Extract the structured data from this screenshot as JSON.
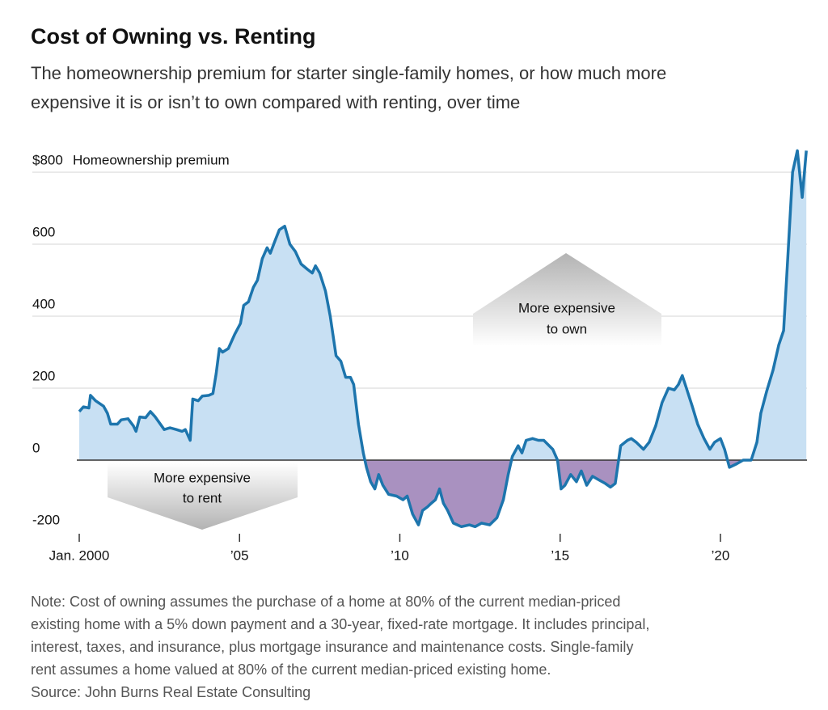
{
  "chart_data": {
    "type": "line",
    "title": "Cost of Owning vs. Renting",
    "subtitle": [
      "The homeownership premium for starter single-family homes, or how much more",
      "expensive it is or isn’t to own compared with renting, over time"
    ],
    "y_label": "Homeownership premium",
    "x": [
      2000.0,
      2000.13,
      2000.3,
      2000.35,
      2000.51,
      2000.76,
      2000.88,
      2000.98,
      2001.19,
      2001.31,
      2001.52,
      2001.69,
      2001.77,
      2001.89,
      2002.07,
      2002.22,
      2002.37,
      2002.65,
      2002.83,
      2003.03,
      2003.21,
      2003.31,
      2003.46,
      2003.54,
      2003.71,
      2003.84,
      2004.04,
      2004.17,
      2004.27,
      2004.37,
      2004.47,
      2004.65,
      2004.85,
      2005.03,
      2005.13,
      2005.28,
      2005.43,
      2005.56,
      2005.71,
      2005.86,
      2005.96,
      2006.11,
      2006.24,
      2006.41,
      2006.57,
      2006.74,
      2006.92,
      2007.12,
      2007.27,
      2007.37,
      2007.5,
      2007.68,
      2007.83,
      2008.01,
      2008.16,
      2008.31,
      2008.46,
      2008.56,
      2008.71,
      2008.86,
      2008.96,
      2009.09,
      2009.22,
      2009.34,
      2009.47,
      2009.65,
      2009.9,
      2010.1,
      2010.23,
      2010.4,
      2010.58,
      2010.71,
      2010.86,
      2010.98,
      2011.11,
      2011.24,
      2011.36,
      2011.49,
      2011.67,
      2011.92,
      2012.17,
      2012.35,
      2012.55,
      2012.8,
      2013.03,
      2013.23,
      2013.38,
      2013.51,
      2013.69,
      2013.81,
      2013.94,
      2014.14,
      2014.32,
      2014.49,
      2014.77,
      2014.92,
      2015.03,
      2015.15,
      2015.33,
      2015.51,
      2015.66,
      2015.83,
      2016.01,
      2016.21,
      2016.41,
      2016.57,
      2016.72,
      2016.89,
      2017.1,
      2017.22,
      2017.37,
      2017.6,
      2017.78,
      2017.98,
      2018.18,
      2018.38,
      2018.56,
      2018.69,
      2018.81,
      2018.94,
      2019.12,
      2019.29,
      2019.49,
      2019.67,
      2019.82,
      2020.0,
      2020.13,
      2020.28,
      2020.51,
      2020.71,
      2020.96,
      2021.14,
      2021.26,
      2021.44,
      2021.64,
      2021.82,
      2021.97,
      2022.1,
      2022.25,
      2022.4,
      2022.55,
      2022.68
    ],
    "series": [
      {
        "color": "#1d75ad",
        "fill_positive": "#c8e0f3",
        "fill_negative": "#a991c0",
        "values": [
          135,
          148,
          145,
          180,
          165,
          150,
          130,
          100,
          100,
          112,
          115,
          95,
          80,
          120,
          118,
          135,
          120,
          85,
          90,
          85,
          80,
          85,
          55,
          170,
          165,
          178,
          180,
          185,
          240,
          310,
          300,
          310,
          350,
          380,
          430,
          440,
          480,
          500,
          560,
          590,
          575,
          610,
          640,
          650,
          600,
          580,
          545,
          530,
          520,
          540,
          520,
          470,
          400,
          290,
          275,
          230,
          230,
          210,
          100,
          20,
          -20,
          -60,
          -80,
          -40,
          -70,
          -95,
          -100,
          -110,
          -100,
          -150,
          -180,
          -140,
          -130,
          -120,
          -110,
          -80,
          -120,
          -140,
          -175,
          -185,
          -180,
          -185,
          -175,
          -180,
          -160,
          -110,
          -40,
          10,
          40,
          20,
          55,
          60,
          55,
          55,
          30,
          0,
          -80,
          -70,
          -40,
          -60,
          -30,
          -70,
          -45,
          -55,
          -65,
          -75,
          -65,
          40,
          55,
          60,
          50,
          30,
          50,
          95,
          160,
          200,
          195,
          210,
          235,
          200,
          150,
          100,
          60,
          30,
          50,
          60,
          30,
          -20,
          -10,
          0,
          0,
          50,
          130,
          190,
          250,
          320,
          360,
          560,
          800,
          860,
          730,
          860
        ]
      }
    ],
    "xlim": [
      2000,
      2022.7
    ],
    "xticks": [
      {
        "value": 2000,
        "label": "Jan. 2000"
      },
      {
        "value": 2005,
        "label": "’05"
      },
      {
        "value": 2010,
        "label": "’10"
      },
      {
        "value": 2015,
        "label": "’15"
      },
      {
        "value": 2020,
        "label": "’20"
      }
    ],
    "ylim": [
      -200,
      880
    ],
    "yticks": [
      -200,
      0,
      200,
      400,
      600,
      {
        "value": 800,
        "label": "$800"
      }
    ],
    "grid": true,
    "annotations": [
      {
        "lines": [
          "More expensive",
          "to own"
        ]
      },
      {
        "lines": [
          "More expensive",
          "to rent"
        ]
      }
    ],
    "note": [
      "Note: Cost of owning assumes the purchase of a home at 80% of the current median-priced",
      "existing home with a 5% down payment and a 30-year, fixed-rate mortgage. It includes principal,",
      "interest, taxes, and insurance, plus mortgage insurance and maintenance costs. Single-family",
      "rent assumes a home valued at 80% of the current median-priced existing home."
    ],
    "source": "Source: John Burns Real Estate Consulting"
  }
}
